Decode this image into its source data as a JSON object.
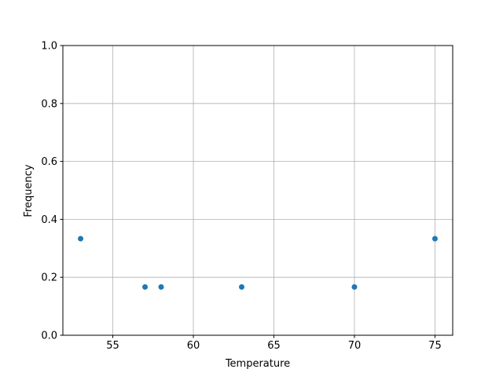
{
  "chart_data": {
    "type": "scatter",
    "title": "",
    "xlabel": "Temperature",
    "ylabel": "Frequency",
    "x": [
      53,
      57,
      58,
      63,
      70,
      75
    ],
    "y": [
      0.3333,
      0.1667,
      0.1667,
      0.1667,
      0.1667,
      0.3333
    ],
    "xlim": [
      51.9,
      76.1
    ],
    "ylim": [
      0.0,
      1.0
    ],
    "xticks": [
      55,
      60,
      65,
      70,
      75
    ],
    "xtick_labels": [
      "55",
      "60",
      "65",
      "70",
      "75"
    ],
    "yticks": [
      0.0,
      0.2,
      0.4,
      0.6,
      0.8,
      1.0
    ],
    "ytick_labels": [
      "0.0",
      "0.2",
      "0.4",
      "0.6",
      "0.8",
      "1.0"
    ],
    "grid": true,
    "colors": {
      "marker": "#1f77b4",
      "grid": "#b0b0b0"
    }
  }
}
